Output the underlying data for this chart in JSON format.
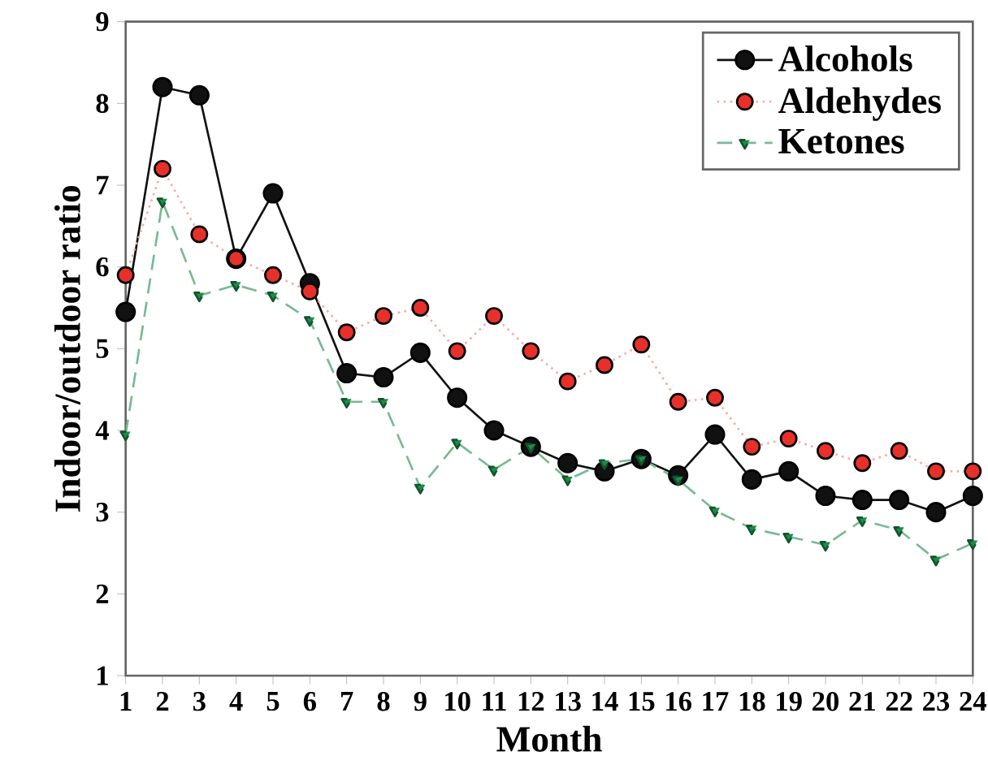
{
  "chart_data": {
    "type": "line",
    "xlabel": "Month",
    "ylabel": "Indoor/outdoor ratio",
    "x": [
      1,
      2,
      3,
      4,
      5,
      6,
      7,
      8,
      9,
      10,
      11,
      12,
      13,
      14,
      15,
      16,
      17,
      18,
      19,
      20,
      21,
      22,
      23,
      24
    ],
    "xlim": [
      1,
      24
    ],
    "xticks": [
      1,
      2,
      3,
      4,
      5,
      6,
      7,
      8,
      9,
      10,
      11,
      12,
      13,
      14,
      15,
      16,
      17,
      18,
      19,
      20,
      21,
      22,
      23,
      24
    ],
    "ylim": [
      1,
      9
    ],
    "yticks": [
      1,
      2,
      3,
      4,
      5,
      6,
      7,
      8,
      9
    ],
    "legend": "top right",
    "grid": false,
    "series": [
      {
        "name": "Alcohols",
        "color": "#111111",
        "marker": "circle",
        "line_style": "solid",
        "values": [
          5.45,
          8.2,
          8.1,
          6.1,
          6.9,
          5.8,
          4.7,
          4.65,
          4.95,
          4.4,
          4.0,
          3.8,
          3.6,
          3.5,
          3.65,
          3.45,
          3.95,
          3.4,
          3.5,
          3.2,
          3.15,
          3.15,
          3.0,
          3.2
        ]
      },
      {
        "name": "Aldehydes",
        "color": "#e8302a",
        "marker": "circle",
        "line_style": "dotted",
        "values": [
          5.9,
          7.2,
          6.4,
          6.1,
          5.9,
          5.7,
          5.2,
          5.4,
          5.5,
          4.97,
          5.4,
          4.97,
          4.6,
          4.8,
          5.05,
          4.35,
          4.4,
          3.8,
          3.9,
          3.75,
          3.6,
          3.75,
          3.5,
          3.5
        ]
      },
      {
        "name": "Ketones",
        "color": "#1e8c4a",
        "marker": "triangle",
        "line_style": "dashed",
        "values": [
          3.95,
          6.8,
          5.65,
          5.78,
          5.65,
          5.35,
          4.35,
          4.35,
          3.3,
          3.85,
          3.52,
          3.8,
          3.4,
          3.6,
          3.65,
          3.4,
          3.02,
          2.8,
          2.7,
          2.6,
          2.9,
          2.78,
          2.42,
          2.62
        ]
      }
    ]
  }
}
